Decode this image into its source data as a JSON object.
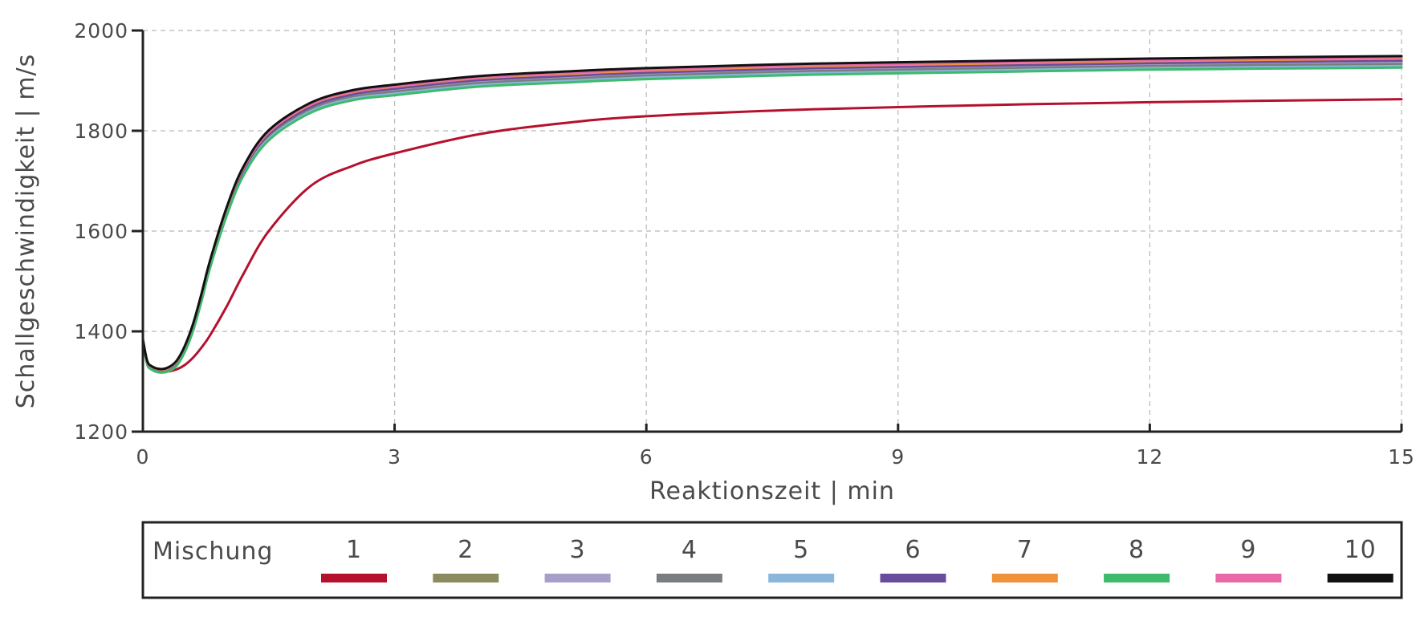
{
  "chart_data": {
    "type": "line",
    "title": "",
    "xlabel": "Reaktionszeit | min",
    "ylabel": "Schallgeschwindigkeit | m/s",
    "xlim": [
      0,
      15
    ],
    "ylim": [
      1200,
      2000
    ],
    "xticks": [
      0,
      3,
      6,
      9,
      12,
      15
    ],
    "yticks": [
      1200,
      1400,
      1600,
      1800,
      2000
    ],
    "grid": true,
    "legend_position": "bottom",
    "legend_title": "Mischung",
    "x": [
      0,
      0.05,
      0.1,
      0.2,
      0.3,
      0.4,
      0.5,
      0.6,
      0.7,
      0.8,
      1.0,
      1.2,
      1.5,
      2.0,
      2.5,
      3,
      4,
      5,
      6,
      8,
      10,
      12,
      15
    ],
    "series": [
      {
        "name": "1",
        "color": "#b5112e",
        "values": [
          1385,
          1335,
          1327,
          1320,
          1320,
          1324,
          1333,
          1348,
          1368,
          1392,
          1450,
          1515,
          1600,
          1690,
          1730,
          1755,
          1793,
          1815,
          1829,
          1843,
          1851,
          1857,
          1863
        ]
      },
      {
        "name": "2",
        "color": "#8b8b5e",
        "values": [
          1380,
          1338,
          1327,
          1321,
          1323,
          1335,
          1365,
          1410,
          1470,
          1535,
          1640,
          1720,
          1790,
          1845,
          1870,
          1880,
          1897,
          1905,
          1912,
          1921,
          1926,
          1931,
          1935
        ]
      },
      {
        "name": "3",
        "color": "#a89fc9",
        "values": [
          1381,
          1339,
          1328,
          1322,
          1324,
          1336,
          1366,
          1411,
          1471,
          1536,
          1641,
          1721,
          1791,
          1846,
          1871,
          1882,
          1899,
          1907,
          1914,
          1923,
          1928,
          1933,
          1937
        ]
      },
      {
        "name": "4",
        "color": "#7a7d80",
        "values": [
          1380,
          1337,
          1326,
          1320,
          1322,
          1334,
          1364,
          1409,
          1469,
          1534,
          1639,
          1719,
          1789,
          1843,
          1868,
          1878,
          1895,
          1903,
          1910,
          1919,
          1924,
          1929,
          1933
        ]
      },
      {
        "name": "5",
        "color": "#8ab6dc",
        "values": [
          1379,
          1336,
          1325,
          1319,
          1321,
          1332,
          1361,
          1405,
          1464,
          1529,
          1634,
          1714,
          1784,
          1839,
          1864,
          1874,
          1891,
          1899,
          1906,
          1915,
          1920,
          1925,
          1929
        ]
      },
      {
        "name": "6",
        "color": "#6a4c9c",
        "values": [
          1382,
          1340,
          1329,
          1323,
          1325,
          1337,
          1367,
          1412,
          1472,
          1537,
          1642,
          1722,
          1793,
          1848,
          1873,
          1884,
          1901,
          1909,
          1916,
          1925,
          1930,
          1935,
          1940
        ]
      },
      {
        "name": "7",
        "color": "#f0923a",
        "values": [
          1383,
          1341,
          1330,
          1324,
          1326,
          1339,
          1369,
          1414,
          1474,
          1539,
          1645,
          1726,
          1797,
          1852,
          1877,
          1888,
          1905,
          1913,
          1920,
          1929,
          1934,
          1939,
          1944
        ]
      },
      {
        "name": "8",
        "color": "#3dba6c",
        "values": [
          1378,
          1335,
          1324,
          1318,
          1320,
          1331,
          1359,
          1402,
          1461,
          1526,
          1631,
          1711,
          1781,
          1836,
          1861,
          1871,
          1888,
          1896,
          1903,
          1912,
          1917,
          1922,
          1926
        ]
      },
      {
        "name": "9",
        "color": "#e868a8",
        "values": [
          1383,
          1341,
          1330,
          1325,
          1327,
          1340,
          1370,
          1415,
          1475,
          1540,
          1646,
          1727,
          1798,
          1853,
          1878,
          1889,
          1906,
          1915,
          1922,
          1931,
          1936,
          1941,
          1946
        ]
      },
      {
        "name": "10",
        "color": "#111111",
        "values": [
          1384,
          1342,
          1331,
          1325,
          1328,
          1341,
          1371,
          1416,
          1476,
          1541,
          1648,
          1729,
          1801,
          1856,
          1881,
          1892,
          1909,
          1918,
          1925,
          1934,
          1939,
          1944,
          1949
        ]
      }
    ]
  }
}
